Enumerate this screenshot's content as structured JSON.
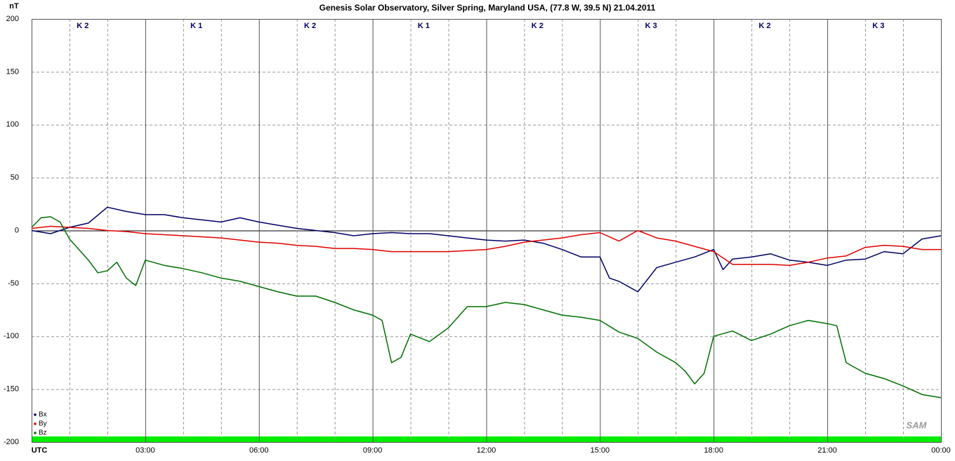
{
  "chart_data": {
    "type": "line",
    "title": "Genesis Solar Observatory, Silver Spring, Maryland USA, (77.8 W, 39.5 N)  21.04.2011",
    "ylabel": "nT",
    "logo_text": "SAM",
    "xlim": [
      0,
      24
    ],
    "xticks": [
      {
        "value": 0,
        "label": "UTC"
      },
      {
        "value": 3,
        "label": "03:00"
      },
      {
        "value": 6,
        "label": "06:00"
      },
      {
        "value": 9,
        "label": "09:00"
      },
      {
        "value": 12,
        "label": "12:00"
      },
      {
        "value": 15,
        "label": "15:00"
      },
      {
        "value": 18,
        "label": "18:00"
      },
      {
        "value": 21,
        "label": "21:00"
      },
      {
        "value": 24,
        "label": "00:00"
      }
    ],
    "minor_xticks": [
      1,
      2,
      4,
      5,
      7,
      8,
      10,
      11,
      13,
      14,
      16,
      17,
      19,
      20,
      22,
      23
    ],
    "ylim": [
      -200,
      200
    ],
    "yticks": [
      -200,
      -150,
      -100,
      -50,
      0,
      50,
      100,
      150,
      200
    ],
    "grid": true,
    "legend": "lower left",
    "k_labels": [
      "K 2",
      "K 1",
      "K 2",
      "K 1",
      "K 2",
      "K 3",
      "K 2",
      "K 3"
    ],
    "series": [
      {
        "name": "Bx",
        "color": "#000066",
        "x": [
          0,
          0.5,
          1,
          1.5,
          2,
          2.5,
          3,
          3.5,
          4,
          4.5,
          5,
          5.5,
          6,
          6.5,
          7,
          7.5,
          8,
          8.5,
          9,
          9.5,
          10,
          10.5,
          11,
          11.5,
          12,
          12.5,
          13,
          13.5,
          14,
          14.5,
          15,
          15.25,
          15.5,
          16,
          16.5,
          17,
          17.5,
          18,
          18.25,
          18.5,
          19,
          19.5,
          20,
          20.5,
          21,
          21.5,
          22,
          22.5,
          23,
          23.5,
          24
        ],
        "values": [
          0,
          -3,
          3,
          7,
          22,
          18,
          15,
          15,
          12,
          10,
          8,
          12,
          8,
          5,
          2,
          0,
          -2,
          -5,
          -3,
          -2,
          -3,
          -3,
          -5,
          -7,
          -9,
          -10,
          -9,
          -12,
          -18,
          -25,
          -25,
          -45,
          -48,
          -58,
          -35,
          -30,
          -25,
          -18,
          -37,
          -27,
          -25,
          -22,
          -28,
          -30,
          -33,
          -28,
          -27,
          -20,
          -22,
          -8,
          -5
        ]
      },
      {
        "name": "By",
        "color": "#e00000",
        "x": [
          0,
          0.5,
          1,
          1.5,
          2,
          2.5,
          3,
          3.5,
          4,
          4.5,
          5,
          5.5,
          6,
          6.5,
          7,
          7.5,
          8,
          8.5,
          9,
          9.5,
          10,
          10.5,
          11,
          11.5,
          12,
          12.5,
          13,
          13.5,
          14,
          14.5,
          15,
          15.5,
          16,
          16.5,
          17,
          17.5,
          18,
          18.5,
          19,
          19.5,
          20,
          20.5,
          21,
          21.5,
          22,
          22.5,
          23,
          23.5,
          24
        ],
        "values": [
          2,
          4,
          3,
          2,
          0,
          -1,
          -3,
          -4,
          -5,
          -6,
          -7,
          -9,
          -11,
          -12,
          -14,
          -15,
          -17,
          -17,
          -18,
          -20,
          -20,
          -20,
          -20,
          -19,
          -18,
          -15,
          -11,
          -9,
          -7,
          -4,
          -2,
          -10,
          0,
          -7,
          -10,
          -15,
          -20,
          -32,
          -32,
          -32,
          -33,
          -30,
          -26,
          -24,
          -16,
          -14,
          -15,
          -18,
          -18
        ]
      },
      {
        "name": "Bz",
        "color": "#007000",
        "x": [
          0,
          0.25,
          0.5,
          0.75,
          1,
          1.5,
          1.75,
          2,
          2.25,
          2.5,
          2.75,
          3,
          3.5,
          4,
          4.5,
          5,
          5.5,
          6,
          6.5,
          7,
          7.5,
          8,
          8.5,
          9,
          9.25,
          9.5,
          9.75,
          10,
          10.5,
          11,
          11.5,
          12,
          12.5,
          13,
          13.5,
          14,
          14.5,
          15,
          15.5,
          16,
          16.5,
          17,
          17.25,
          17.5,
          17.75,
          18,
          18.5,
          19,
          19.5,
          20,
          20.5,
          21,
          21.25,
          21.5,
          22,
          22.5,
          23,
          23.5,
          24
        ],
        "values": [
          3,
          12,
          13,
          8,
          -8,
          -28,
          -40,
          -38,
          -30,
          -45,
          -52,
          -28,
          -33,
          -36,
          -40,
          -45,
          -48,
          -53,
          -58,
          -62,
          -62,
          -68,
          -75,
          -80,
          -85,
          -125,
          -120,
          -98,
          -105,
          -92,
          -72,
          -72,
          -68,
          -70,
          -75,
          -80,
          -82,
          -85,
          -96,
          -102,
          -115,
          -125,
          -133,
          -145,
          -135,
          -100,
          -95,
          -104,
          -98,
          -90,
          -85,
          -88,
          -90,
          -125,
          -135,
          -140,
          -147,
          -155,
          -158
        ]
      }
    ]
  }
}
